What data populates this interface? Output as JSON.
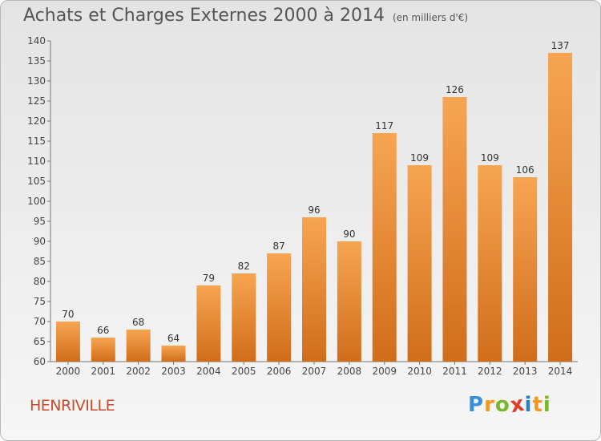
{
  "chart_data": {
    "type": "bar",
    "title": "Achats et Charges Externes 2000 à 2014",
    "subtitle": "(en milliers d'€)",
    "categories": [
      "2000",
      "2001",
      "2002",
      "2003",
      "2004",
      "2005",
      "2006",
      "2007",
      "2008",
      "2009",
      "2010",
      "2011",
      "2012",
      "2013",
      "2014"
    ],
    "values": [
      70,
      66,
      68,
      64,
      79,
      82,
      87,
      96,
      90,
      117,
      109,
      126,
      109,
      106,
      137
    ],
    "ylim": [
      60,
      140
    ],
    "yticks": [
      60,
      65,
      70,
      75,
      80,
      85,
      90,
      95,
      100,
      105,
      110,
      115,
      120,
      125,
      130,
      135,
      140
    ],
    "grid": false,
    "legend": "none",
    "bar_color": "#f39c4a"
  },
  "footer": {
    "place": "HENRIVILLE",
    "logo_letters": [
      "P",
      "r",
      "o",
      "x",
      "i",
      "t",
      "i"
    ],
    "logo_colors": [
      "#3a8fd8",
      "#f39a1e",
      "#79b82c",
      "#e23b2c",
      "#2b7fc8",
      "#f39a1e",
      "#79b82c"
    ]
  }
}
